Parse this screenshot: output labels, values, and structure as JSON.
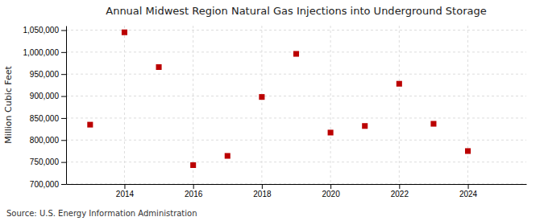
{
  "chart_data": {
    "type": "scatter",
    "title": "Annual Midwest Region Natural Gas Injections into Underground Storage",
    "y_label": "Million Cubic Feet",
    "source": "Source: U.S. Energy Information Administration",
    "x": [
      2013,
      2014,
      2015,
      2016,
      2017,
      2018,
      2019,
      2020,
      2021,
      2022,
      2023,
      2024
    ],
    "values": [
      835000,
      1045000,
      966000,
      743000,
      764000,
      898000,
      996000,
      817000,
      832000,
      928000,
      837000,
      775000
    ],
    "color": "#bb0000",
    "marker": "square",
    "xlim": [
      2012.3,
      2025.7
    ],
    "ylim": [
      700000,
      1060000
    ],
    "xticks": [
      2014,
      2016,
      2018,
      2020,
      2022,
      2024
    ],
    "yticks": [
      {
        "value": 700000,
        "label": "700,000"
      },
      {
        "value": 750000,
        "label": "750,000"
      },
      {
        "value": 800000,
        "label": "800,000"
      },
      {
        "value": 850000,
        "label": "850,000"
      },
      {
        "value": 900000,
        "label": "900,000"
      },
      {
        "value": 950000,
        "label": "950,000"
      },
      {
        "value": 1000000,
        "label": "1,000,000"
      },
      {
        "value": 1050000,
        "label": "1,050,000"
      }
    ],
    "grid": true
  }
}
